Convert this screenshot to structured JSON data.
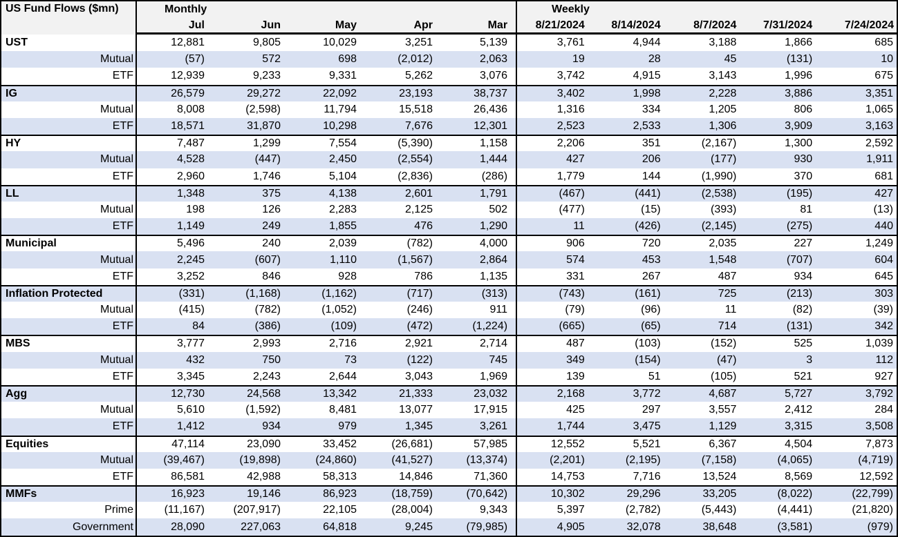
{
  "title": "US Fund Flows ($mn)",
  "colors": {
    "stripe": "#D9E1F2",
    "header_bg": "#F2F2F2",
    "border": "#000000"
  },
  "sections": [
    {
      "label": "Monthly",
      "columns": [
        "Jul",
        "Jun",
        "May",
        "Apr",
        "Mar"
      ]
    },
    {
      "label": "Weekly",
      "columns": [
        "8/21/2024",
        "8/14/2024",
        "8/7/2024",
        "7/31/2024",
        "7/24/2024"
      ]
    }
  ],
  "groups": [
    {
      "name": "UST",
      "rows": [
        {
          "label": "UST",
          "style": "group",
          "monthly": [
            "12,881",
            "9,805",
            "10,029",
            "3,251",
            "5,139"
          ],
          "weekly": [
            "3,761",
            "4,944",
            "3,188",
            "1,866",
            "685"
          ]
        },
        {
          "label": "Mutual",
          "style": "sub",
          "monthly": [
            "(57)",
            "572",
            "698",
            "(2,012)",
            "2,063"
          ],
          "weekly": [
            "19",
            "28",
            "45",
            "(131)",
            "10"
          ]
        },
        {
          "label": "ETF",
          "style": "sub",
          "monthly": [
            "12,939",
            "9,233",
            "9,331",
            "5,262",
            "3,076"
          ],
          "weekly": [
            "3,742",
            "4,915",
            "3,143",
            "1,996",
            "675"
          ]
        }
      ]
    },
    {
      "name": "IG",
      "rows": [
        {
          "label": "IG",
          "style": "group",
          "monthly": [
            "26,579",
            "29,272",
            "22,092",
            "23,193",
            "38,737"
          ],
          "weekly": [
            "3,402",
            "1,998",
            "2,228",
            "3,886",
            "3,351"
          ]
        },
        {
          "label": "Mutual",
          "style": "sub",
          "monthly": [
            "8,008",
            "(2,598)",
            "11,794",
            "15,518",
            "26,436"
          ],
          "weekly": [
            "1,316",
            "334",
            "1,205",
            "806",
            "1,065"
          ]
        },
        {
          "label": "ETF",
          "style": "sub",
          "monthly": [
            "18,571",
            "31,870",
            "10,298",
            "7,676",
            "12,301"
          ],
          "weekly": [
            "2,523",
            "2,533",
            "1,306",
            "3,909",
            "3,163"
          ]
        }
      ]
    },
    {
      "name": "HY",
      "rows": [
        {
          "label": "HY",
          "style": "group",
          "monthly": [
            "7,487",
            "1,299",
            "7,554",
            "(5,390)",
            "1,158"
          ],
          "weekly": [
            "2,206",
            "351",
            "(2,167)",
            "1,300",
            "2,592"
          ]
        },
        {
          "label": "Mutual",
          "style": "sub",
          "monthly": [
            "4,528",
            "(447)",
            "2,450",
            "(2,554)",
            "1,444"
          ],
          "weekly": [
            "427",
            "206",
            "(177)",
            "930",
            "1,911"
          ]
        },
        {
          "label": "ETF",
          "style": "sub",
          "monthly": [
            "2,960",
            "1,746",
            "5,104",
            "(2,836)",
            "(286)"
          ],
          "weekly": [
            "1,779",
            "144",
            "(1,990)",
            "370",
            "681"
          ]
        }
      ]
    },
    {
      "name": "LL",
      "rows": [
        {
          "label": "LL",
          "style": "group",
          "monthly": [
            "1,348",
            "375",
            "4,138",
            "2,601",
            "1,791"
          ],
          "weekly": [
            "(467)",
            "(441)",
            "(2,538)",
            "(195)",
            "427"
          ]
        },
        {
          "label": "Mutual",
          "style": "sub",
          "monthly": [
            "198",
            "126",
            "2,283",
            "2,125",
            "502"
          ],
          "weekly": [
            "(477)",
            "(15)",
            "(393)",
            "81",
            "(13)"
          ]
        },
        {
          "label": "ETF",
          "style": "sub",
          "monthly": [
            "1,149",
            "249",
            "1,855",
            "476",
            "1,290"
          ],
          "weekly": [
            "11",
            "(426)",
            "(2,145)",
            "(275)",
            "440"
          ]
        }
      ]
    },
    {
      "name": "Municipal",
      "rows": [
        {
          "label": "Municipal",
          "style": "group",
          "monthly": [
            "5,496",
            "240",
            "2,039",
            "(782)",
            "4,000"
          ],
          "weekly": [
            "906",
            "720",
            "2,035",
            "227",
            "1,249"
          ]
        },
        {
          "label": "Mutual",
          "style": "sub",
          "monthly": [
            "2,245",
            "(607)",
            "1,110",
            "(1,567)",
            "2,864"
          ],
          "weekly": [
            "574",
            "453",
            "1,548",
            "(707)",
            "604"
          ]
        },
        {
          "label": "ETF",
          "style": "sub",
          "monthly": [
            "3,252",
            "846",
            "928",
            "786",
            "1,135"
          ],
          "weekly": [
            "331",
            "267",
            "487",
            "934",
            "645"
          ]
        }
      ]
    },
    {
      "name": "Inflation Protected",
      "rows": [
        {
          "label": "Inflation Protected",
          "style": "group",
          "monthly": [
            "(331)",
            "(1,168)",
            "(1,162)",
            "(717)",
            "(313)"
          ],
          "weekly": [
            "(743)",
            "(161)",
            "725",
            "(213)",
            "303"
          ]
        },
        {
          "label": "Mutual",
          "style": "sub",
          "monthly": [
            "(415)",
            "(782)",
            "(1,052)",
            "(246)",
            "911"
          ],
          "weekly": [
            "(79)",
            "(96)",
            "11",
            "(82)",
            "(39)"
          ]
        },
        {
          "label": "ETF",
          "style": "sub",
          "monthly": [
            "84",
            "(386)",
            "(109)",
            "(472)",
            "(1,224)"
          ],
          "weekly": [
            "(665)",
            "(65)",
            "714",
            "(131)",
            "342"
          ]
        }
      ]
    },
    {
      "name": "MBS",
      "rows": [
        {
          "label": "MBS",
          "style": "group",
          "monthly": [
            "3,777",
            "2,993",
            "2,716",
            "2,921",
            "2,714"
          ],
          "weekly": [
            "487",
            "(103)",
            "(152)",
            "525",
            "1,039"
          ]
        },
        {
          "label": "Mutual",
          "style": "sub",
          "monthly": [
            "432",
            "750",
            "73",
            "(122)",
            "745"
          ],
          "weekly": [
            "349",
            "(154)",
            "(47)",
            "3",
            "112"
          ]
        },
        {
          "label": "ETF",
          "style": "sub",
          "monthly": [
            "3,345",
            "2,243",
            "2,644",
            "3,043",
            "1,969"
          ],
          "weekly": [
            "139",
            "51",
            "(105)",
            "521",
            "927"
          ]
        }
      ]
    },
    {
      "name": "Agg",
      "rows": [
        {
          "label": "Agg",
          "style": "group",
          "monthly": [
            "12,730",
            "24,568",
            "13,342",
            "21,333",
            "23,032"
          ],
          "weekly": [
            "2,168",
            "3,772",
            "4,687",
            "5,727",
            "3,792"
          ]
        },
        {
          "label": "Mutual",
          "style": "sub",
          "monthly": [
            "5,610",
            "(1,592)",
            "8,481",
            "13,077",
            "17,915"
          ],
          "weekly": [
            "425",
            "297",
            "3,557",
            "2,412",
            "284"
          ]
        },
        {
          "label": "ETF",
          "style": "sub",
          "monthly": [
            "1,412",
            "934",
            "979",
            "1,345",
            "3,261"
          ],
          "weekly": [
            "1,744",
            "3,475",
            "1,129",
            "3,315",
            "3,508"
          ]
        }
      ]
    },
    {
      "name": "Equities",
      "rows": [
        {
          "label": "Equities",
          "style": "group",
          "monthly": [
            "47,114",
            "23,090",
            "33,452",
            "(26,681)",
            "57,985"
          ],
          "weekly": [
            "12,552",
            "5,521",
            "6,367",
            "4,504",
            "7,873"
          ]
        },
        {
          "label": "Mutual",
          "style": "sub",
          "monthly": [
            "(39,467)",
            "(19,898)",
            "(24,860)",
            "(41,527)",
            "(13,374)"
          ],
          "weekly": [
            "(2,201)",
            "(2,195)",
            "(7,158)",
            "(4,065)",
            "(4,719)"
          ]
        },
        {
          "label": "ETF",
          "style": "sub",
          "monthly": [
            "86,581",
            "42,988",
            "58,313",
            "14,846",
            "71,360"
          ],
          "weekly": [
            "14,753",
            "7,716",
            "13,524",
            "8,569",
            "12,592"
          ]
        }
      ]
    },
    {
      "name": "MMFs",
      "rows": [
        {
          "label": "MMFs",
          "style": "group",
          "monthly": [
            "16,923",
            "19,146",
            "86,923",
            "(18,759)",
            "(70,642)"
          ],
          "weekly": [
            "10,302",
            "29,296",
            "33,205",
            "(8,022)",
            "(22,799)"
          ]
        },
        {
          "label": "Prime",
          "style": "sub",
          "monthly": [
            "(11,167)",
            "(207,917)",
            "22,105",
            "(28,004)",
            "9,343"
          ],
          "weekly": [
            "5,397",
            "(2,782)",
            "(5,443)",
            "(4,441)",
            "(21,820)"
          ]
        },
        {
          "label": "Government",
          "style": "sub",
          "monthly": [
            "28,090",
            "227,063",
            "64,818",
            "9,245",
            "(79,985)"
          ],
          "weekly": [
            "4,905",
            "32,078",
            "38,648",
            "(3,581)",
            "(979)"
          ]
        }
      ]
    }
  ]
}
